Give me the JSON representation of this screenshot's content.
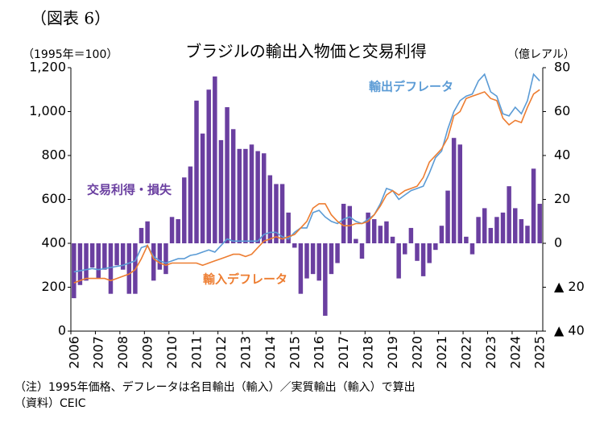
{
  "header": "（図表 6）",
  "chart_data": {
    "type": "combo",
    "title": "ブラジルの輸出入物価と交易利得",
    "y_label": "（1995年＝100）",
    "y2_label": "（億レアル）",
    "categories": [
      "2006",
      null,
      null,
      null,
      "2007",
      null,
      null,
      null,
      "2008",
      null,
      null,
      null,
      "2009",
      null,
      null,
      null,
      "2010",
      null,
      null,
      null,
      "2011",
      null,
      null,
      null,
      "2012",
      null,
      null,
      null,
      "2013",
      null,
      null,
      null,
      "2014",
      null,
      null,
      null,
      "2015",
      null,
      null,
      null,
      "2016",
      null,
      null,
      null,
      "2017",
      null,
      null,
      null,
      "2018",
      null,
      null,
      null,
      "2019",
      null,
      null,
      null,
      "2020",
      null,
      null,
      null,
      "2021",
      null,
      null,
      null,
      "2022",
      null,
      null,
      null,
      "2023",
      null,
      null,
      null,
      "2024",
      null,
      null,
      null,
      "2025"
    ],
    "ylim": [
      0,
      1200
    ],
    "yticks": [
      0,
      200,
      400,
      600,
      800,
      {
        "value": 1000,
        "label": "1,000"
      },
      {
        "value": 1200,
        "label": "1,200"
      }
    ],
    "y2lim": [
      -40,
      80
    ],
    "y2ticks": [
      {
        "value": -40,
        "label": "▲ 40"
      },
      {
        "value": -20,
        "label": "▲ 20"
      },
      0,
      20,
      40,
      60,
      80
    ],
    "series": [
      {
        "name": "交易利得・損失",
        "type": "bar",
        "axis": "y2",
        "color": "#6a3fa0",
        "values": [
          -25,
          -19,
          -17,
          -11,
          -16,
          -12,
          -23,
          -10,
          -12,
          -23,
          -23,
          7,
          10,
          -17,
          -12,
          -14,
          12,
          11,
          30,
          35,
          65,
          50,
          70,
          76,
          47,
          62,
          52,
          43,
          43,
          45,
          42,
          41,
          31,
          27,
          27,
          14,
          -2,
          -23,
          -16,
          -14,
          -17,
          -33,
          -14,
          -9,
          18,
          17,
          2,
          -7,
          14,
          11,
          8,
          10,
          3,
          -16,
          -5,
          7,
          -8,
          -15,
          -9,
          -3,
          8,
          24,
          48,
          45,
          3,
          -5,
          12,
          16,
          7,
          12,
          14,
          26,
          16,
          11,
          8,
          34,
          18
        ]
      },
      {
        "name": "輸出デフレータ",
        "type": "line",
        "color": "#5b9bd5",
        "values": [
          270,
          275,
          280,
          285,
          280,
          285,
          290,
          295,
          300,
          310,
          320,
          380,
          390,
          340,
          320,
          310,
          320,
          330,
          330,
          345,
          350,
          360,
          370,
          360,
          390,
          420,
          410,
          410,
          410,
          410,
          410,
          440,
          450,
          450,
          430,
          420,
          450,
          470,
          470,
          540,
          550,
          520,
          500,
          490,
          510,
          520,
          500,
          490,
          510,
          530,
          580,
          650,
          640,
          600,
          620,
          640,
          650,
          660,
          720,
          790,
          820,
          920,
          1000,
          1050,
          1070,
          1080,
          1140,
          1170,
          1090,
          1070,
          990,
          980,
          1020,
          990,
          1050,
          1170,
          1140
        ]
      },
      {
        "name": "輸入デフレータ",
        "type": "line",
        "color": "#ed7d31",
        "values": [
          220,
          230,
          240,
          240,
          240,
          240,
          230,
          240,
          250,
          260,
          280,
          330,
          390,
          330,
          310,
          300,
          310,
          310,
          310,
          310,
          310,
          300,
          310,
          320,
          330,
          340,
          350,
          350,
          340,
          350,
          380,
          410,
          420,
          430,
          420,
          430,
          440,
          470,
          500,
          560,
          580,
          580,
          530,
          500,
          480,
          480,
          490,
          490,
          500,
          530,
          570,
          620,
          640,
          620,
          640,
          650,
          660,
          700,
          770,
          800,
          830,
          880,
          980,
          1000,
          1060,
          1070,
          1080,
          1090,
          1060,
          1050,
          970,
          940,
          960,
          950,
          1020,
          1080,
          1100
        ]
      }
    ]
  },
  "notes": [
    "（注）1995年価格、デフレータは名目輸出（輸入）／実質輸出（輸入）で算出",
    "（資料）CEIC"
  ]
}
